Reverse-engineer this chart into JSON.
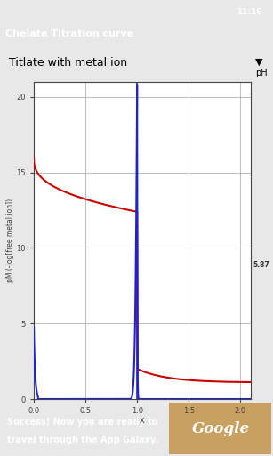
{
  "title": "Chelate Titration curve",
  "dropdown_label": "Titlate with metal ion",
  "xlabel": "x",
  "ylabel": "pM (-log[free metal ion])",
  "ph_label": "pH",
  "ph_value": "5.87",
  "xlim": [
    0.0,
    2.1
  ],
  "ylim": [
    0.0,
    21.0
  ],
  "yticks": [
    0.0,
    5.0,
    10.0,
    15.0,
    20.0
  ],
  "xticks": [
    0.0,
    0.5,
    1.0,
    1.5,
    2.0
  ],
  "vertical_line_x": 1.0,
  "bg_color": "#e8e8e8",
  "plot_bg": "#ffffff",
  "status_bar_color": "#111111",
  "header_color": "#888888",
  "dropdown_color": "#e0e0e0",
  "red_curve_color": "#cc0000",
  "blue_curve_color": "#2222cc",
  "grid_color": "#aaaaaa",
  "axis_color": "#444444",
  "text_color": "#000000",
  "bottom_bar_teal": "#1a6060",
  "slider_gray": "#888888",
  "slider_yellow": "#ffcc00",
  "slider_thumb": "#aaaaaa"
}
